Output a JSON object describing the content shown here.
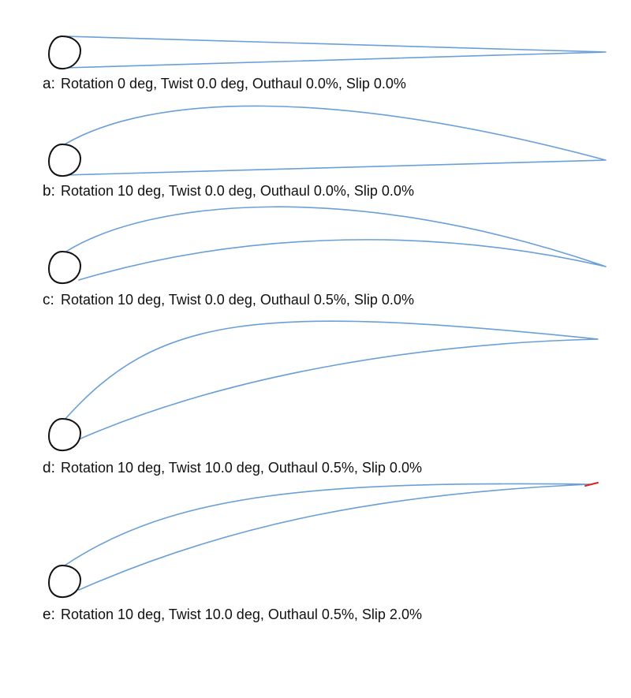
{
  "colors": {
    "sail": "#6a9fd8",
    "mast": "#111111",
    "slip_marker": "#e02020",
    "text": "#111111"
  },
  "panels": [
    {
      "prefix": "a:",
      "caption": "Rotation 0 deg, Twist 0.0 deg, Outhaul 0.0%, Slip 0.0%"
    },
    {
      "prefix": "b:",
      "caption": "Rotation 10 deg, Twist 0.0 deg, Outhaul 0.0%, Slip 0.0%"
    },
    {
      "prefix": "c:",
      "caption": "Rotation 10 deg, Twist 0.0 deg, Outhaul 0.5%, Slip 0.0%"
    },
    {
      "prefix": "d:",
      "caption": "Rotation 10 deg, Twist 10.0 deg, Outhaul 0.5%, Slip 0.0%"
    },
    {
      "prefix": "e:",
      "caption": "Rotation 10 deg, Twist 10.0 deg, Outhaul 0.5%, Slip 2.0%"
    }
  ]
}
